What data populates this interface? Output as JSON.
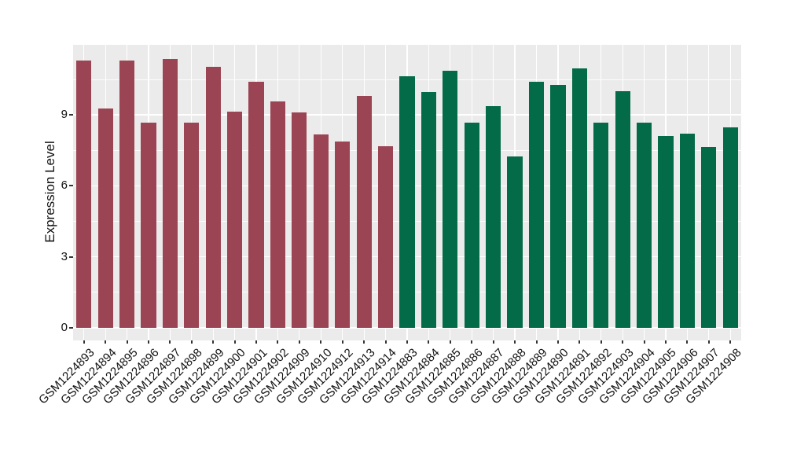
{
  "figure": {
    "background": "#FFFFFF"
  },
  "chart_data": {
    "type": "bar",
    "title": "",
    "xlabel": "",
    "ylabel": "Expression Level",
    "ylim": [
      -0.54,
      12
    ],
    "yticks": [
      0,
      3,
      6,
      9
    ],
    "yticks_minor": [
      1.5,
      4.5,
      7.5,
      10.5
    ],
    "ygrid_major": [
      0,
      3,
      6,
      9,
      12
    ],
    "grid": "on",
    "legend": "none",
    "panel_bg": "#EBEBEB",
    "grid_color": "#FFFFFF",
    "tick_color": "#333333",
    "groups": [
      {
        "name": "group-1",
        "color": "#9B4453"
      },
      {
        "name": "group-2",
        "color": "#046B48"
      }
    ],
    "bars": [
      {
        "label": "GSM1224893",
        "value": 11.3,
        "group": 0
      },
      {
        "label": "GSM1224894",
        "value": 9.27,
        "group": 0
      },
      {
        "label": "GSM1224895",
        "value": 11.3,
        "group": 0
      },
      {
        "label": "GSM1224896",
        "value": 8.68,
        "group": 0
      },
      {
        "label": "GSM1224897",
        "value": 11.38,
        "group": 0
      },
      {
        "label": "GSM1224898",
        "value": 8.66,
        "group": 0
      },
      {
        "label": "GSM1224899",
        "value": 11.02,
        "group": 0
      },
      {
        "label": "GSM1224900",
        "value": 9.13,
        "group": 0
      },
      {
        "label": "GSM1224901",
        "value": 10.42,
        "group": 0
      },
      {
        "label": "GSM1224902",
        "value": 9.57,
        "group": 0
      },
      {
        "label": "GSM1224909",
        "value": 9.1,
        "group": 0
      },
      {
        "label": "GSM1224910",
        "value": 8.16,
        "group": 0
      },
      {
        "label": "GSM1224912",
        "value": 7.86,
        "group": 0
      },
      {
        "label": "GSM1224913",
        "value": 9.79,
        "group": 0
      },
      {
        "label": "GSM1224914",
        "value": 7.66,
        "group": 0
      },
      {
        "label": "GSM1224883",
        "value": 10.65,
        "group": 1
      },
      {
        "label": "GSM1224884",
        "value": 9.97,
        "group": 1
      },
      {
        "label": "GSM1224885",
        "value": 10.88,
        "group": 1
      },
      {
        "label": "GSM1224886",
        "value": 8.66,
        "group": 1
      },
      {
        "label": "GSM1224887",
        "value": 9.38,
        "group": 1
      },
      {
        "label": "GSM1224888",
        "value": 7.25,
        "group": 1
      },
      {
        "label": "GSM1224889",
        "value": 10.4,
        "group": 1
      },
      {
        "label": "GSM1224890",
        "value": 10.28,
        "group": 1
      },
      {
        "label": "GSM1224891",
        "value": 10.98,
        "group": 1
      },
      {
        "label": "GSM1224892",
        "value": 8.69,
        "group": 1
      },
      {
        "label": "GSM1224903",
        "value": 10.0,
        "group": 1
      },
      {
        "label": "GSM1224904",
        "value": 8.66,
        "group": 1
      },
      {
        "label": "GSM1224905",
        "value": 8.1,
        "group": 1
      },
      {
        "label": "GSM1224906",
        "value": 8.2,
        "group": 1
      },
      {
        "label": "GSM1224907",
        "value": 7.65,
        "group": 1
      },
      {
        "label": "GSM1224908",
        "value": 8.46,
        "group": 1
      }
    ]
  }
}
